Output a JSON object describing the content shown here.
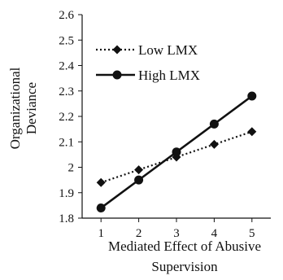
{
  "chart_data": {
    "type": "line",
    "x": [
      1,
      2,
      3,
      4,
      5
    ],
    "xlabel_lines": [
      "Mediated Effect of Abusive",
      "Supervision"
    ],
    "ylabel_lines": [
      "Organizational",
      "Deviance"
    ],
    "ylim": [
      1.8,
      2.6
    ],
    "yticks": [
      "1.8",
      "1.9",
      "2",
      "2.1",
      "2.2",
      "2.3",
      "2.4",
      "2.5",
      "2.6"
    ],
    "xticks": [
      "1",
      "2",
      "3",
      "4",
      "5"
    ],
    "grid": false,
    "legend_position": "top-left",
    "series": [
      {
        "name": "Low LMX",
        "values": [
          1.94,
          1.99,
          2.04,
          2.09,
          2.14
        ],
        "style": "dotted",
        "marker": "diamond",
        "color": "#111111"
      },
      {
        "name": "High LMX",
        "values": [
          1.84,
          1.95,
          2.06,
          2.17,
          2.28
        ],
        "style": "solid",
        "marker": "circle",
        "color": "#111111"
      }
    ]
  }
}
